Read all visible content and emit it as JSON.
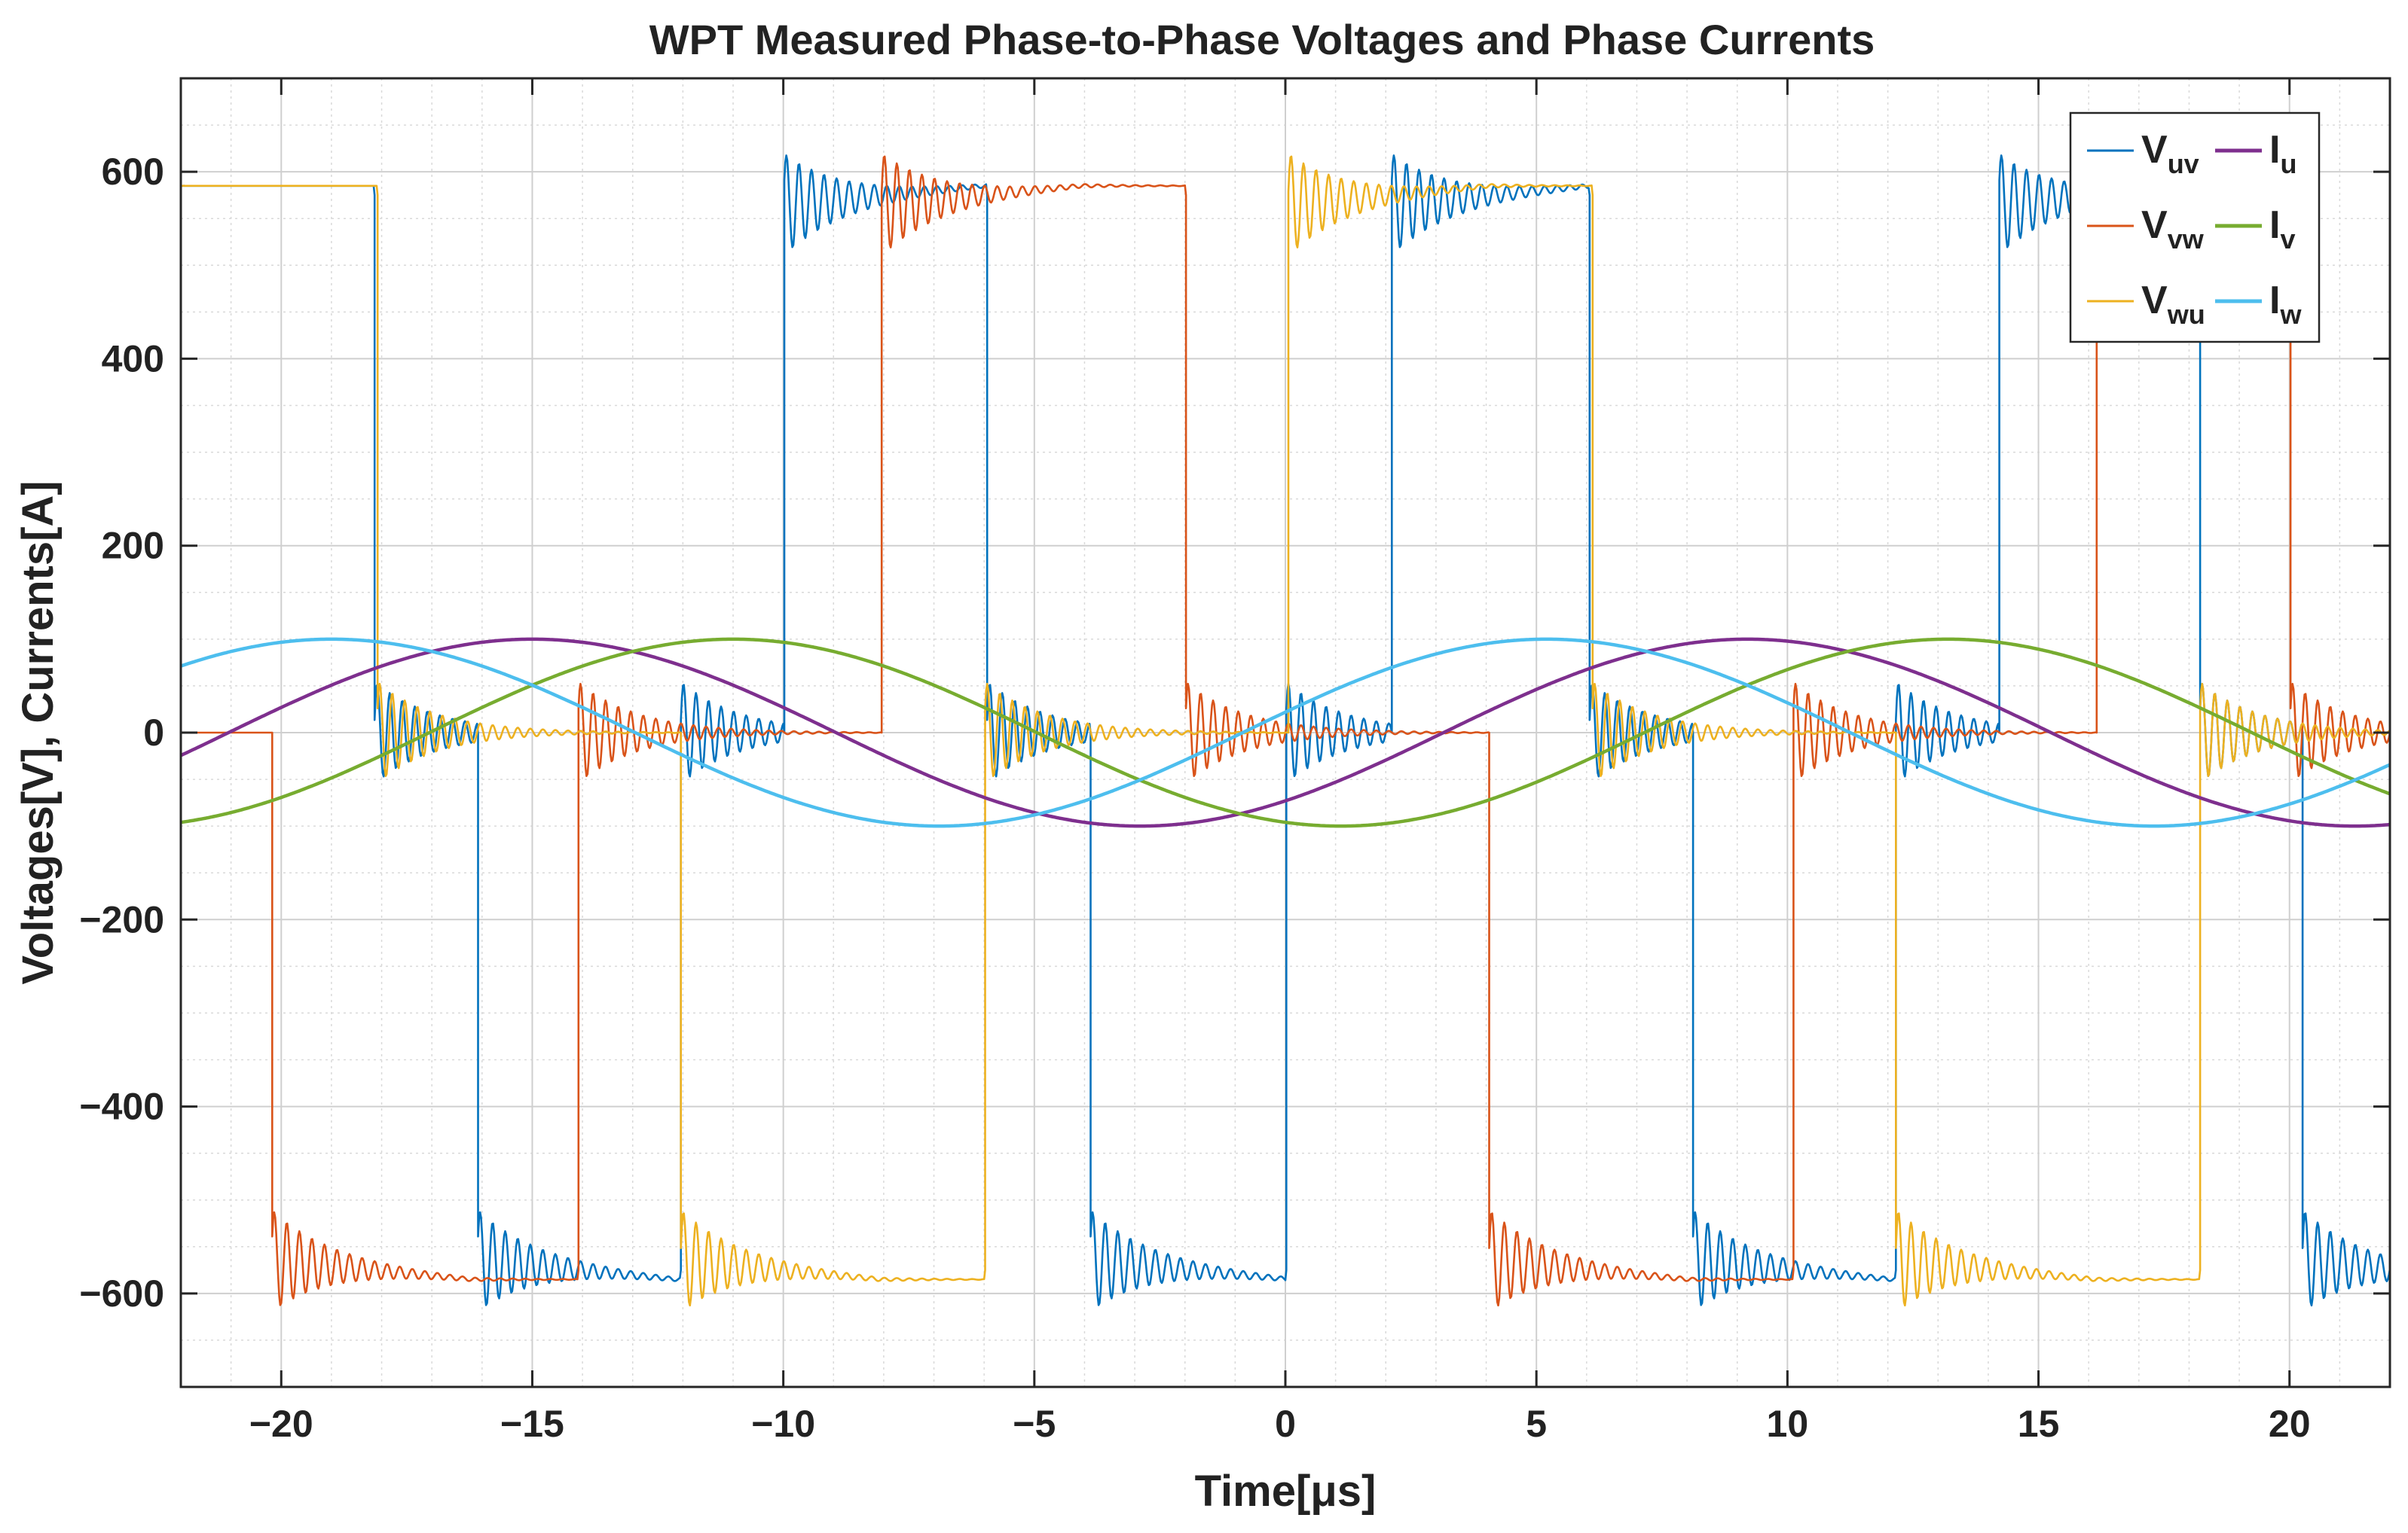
{
  "chart_data": {
    "type": "line",
    "title": "WPT Measured Phase-to-Phase Voltages and Phase Currents",
    "xlabel": "Time[μs]",
    "ylabel": "Voltages[V], Currents[A]",
    "xlim": [
      -22,
      22
    ],
    "ylim": [
      -700,
      700
    ],
    "xticks": [
      -20,
      -15,
      -10,
      -5,
      0,
      5,
      10,
      15,
      20
    ],
    "xtick_labels": [
      "−20",
      "−15",
      "−10",
      "−5",
      "0",
      "5",
      "10",
      "15",
      "20"
    ],
    "yticks": [
      600,
      400,
      200,
      0,
      -200,
      -400,
      -600
    ],
    "ytick_labels": [
      "600",
      "400",
      "200",
      "0",
      "−200",
      "−400",
      "−600"
    ],
    "grid": true,
    "minor_grid": true,
    "legend_position": "top-right",
    "legend_columns": 2,
    "voltage_model": {
      "period_us": 24.2,
      "level_high_V": 575,
      "level_mid_V": 0,
      "level_low_V": -575,
      "step_us": 4.033,
      "ringing_amplitude_V": 55,
      "ringing_period_us": 0.25
    },
    "current_model": {
      "amplitude_A": 100,
      "period_us": 24.2
    },
    "series": [
      {
        "name": "V_uv",
        "label_main": "V",
        "label_sub": "uv",
        "color": "#0072BD",
        "kind": "voltage",
        "switch_times_us": [
          -18.15,
          -16.1,
          -12.05,
          -10.0,
          -5.95,
          -3.9,
          0.0,
          2.1,
          6.05,
          8.1,
          12.15,
          14.2,
          18.2,
          20.25
        ]
      },
      {
        "name": "V_vw",
        "label_main": "V",
        "label_sub": "vw",
        "color": "#D95319",
        "kind": "voltage",
        "switch_times_us": [
          -20.2,
          -14.1,
          -8.05,
          -2.0,
          4.05,
          10.1,
          16.15,
          20.0
        ]
      },
      {
        "name": "V_wu",
        "label_main": "V",
        "label_sub": "wu",
        "color": "#EDB120",
        "kind": "voltage",
        "switch_times_us": [
          -18.1,
          -12.05,
          -6.0,
          0.05,
          6.1,
          12.15,
          18.2
        ]
      },
      {
        "name": "I_u",
        "label_main": "I",
        "label_sub": "u",
        "color": "#7E2F8E",
        "kind": "current",
        "peak_time_us": -15.0,
        "peak_A": 100
      },
      {
        "name": "I_v",
        "label_main": "I",
        "label_sub": "v",
        "color": "#77AC30",
        "kind": "current",
        "peak_time_us": -11.0,
        "peak_A": 100
      },
      {
        "name": "I_w",
        "label_main": "I",
        "label_sub": "w",
        "color": "#4DBEEE",
        "kind": "current",
        "peak_time_us": -19.0,
        "peak_A": 100
      }
    ]
  }
}
